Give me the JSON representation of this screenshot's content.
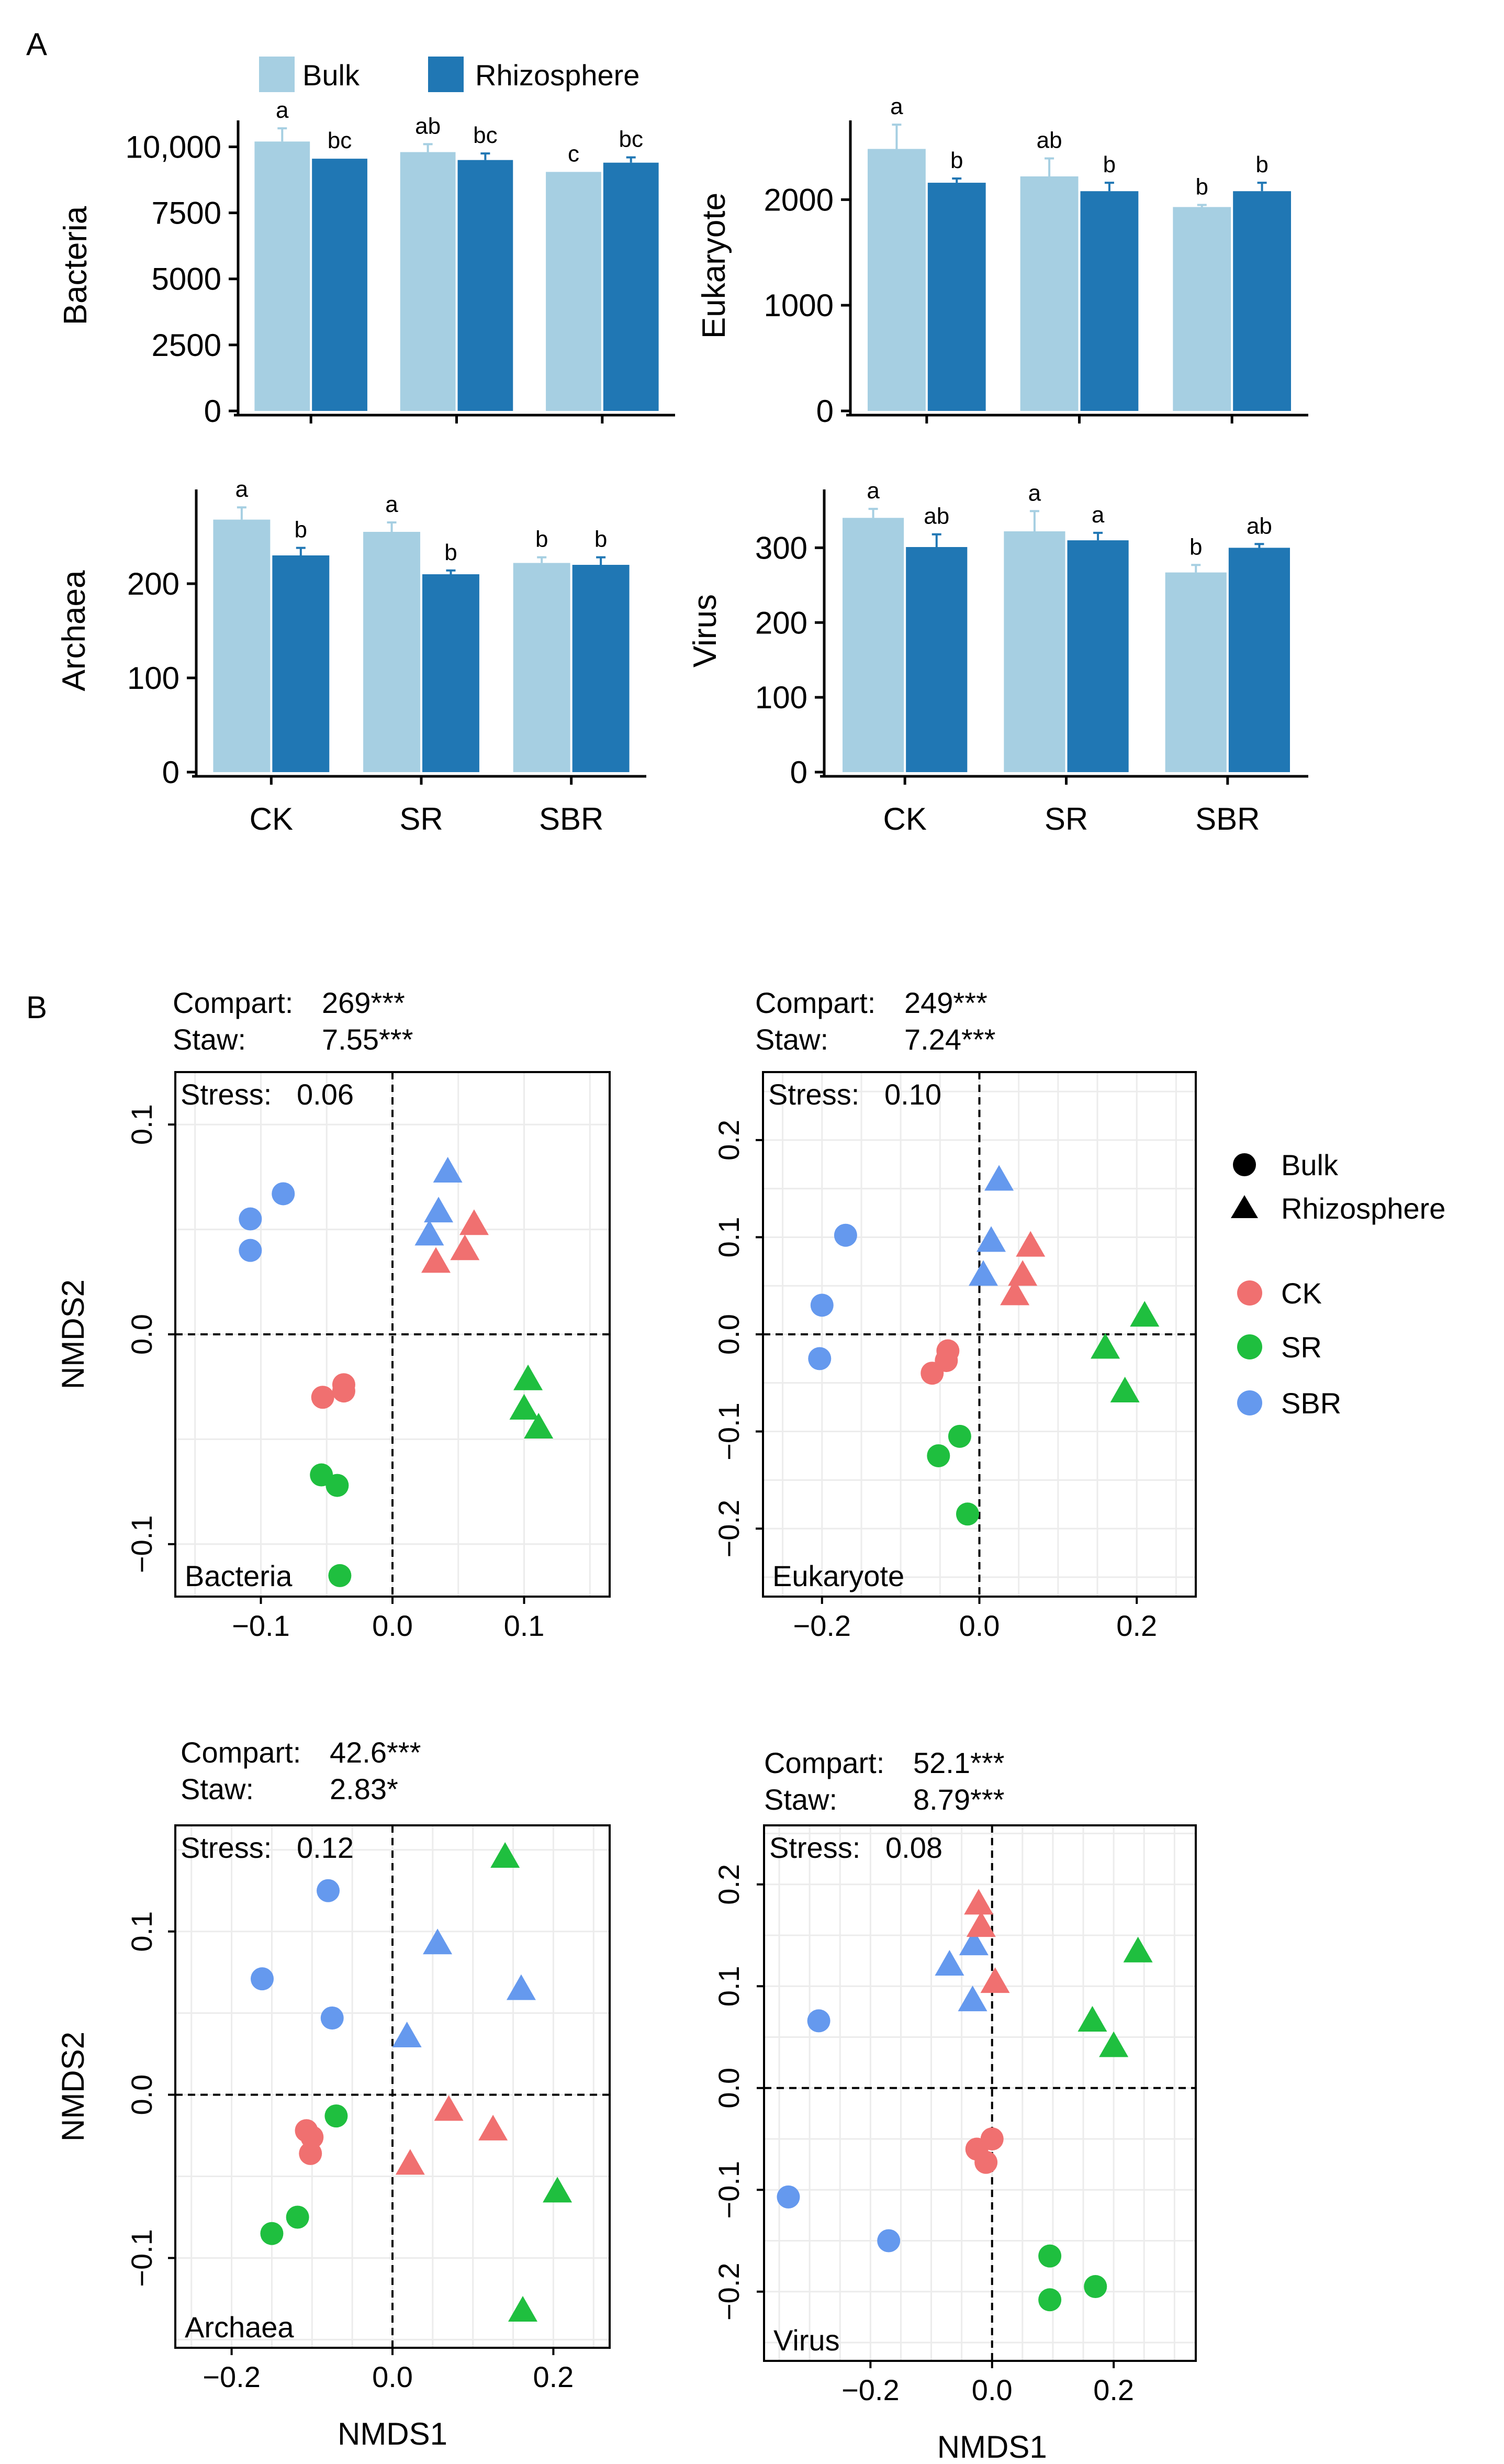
{
  "figure": {
    "label_a": "A",
    "label_b": "B"
  },
  "legend_a": {
    "bulk": "Bulk",
    "rhizosphere": "Rhizosphere"
  },
  "legend_b": {
    "bulk": "Bulk",
    "rhizosphere": "Rhizosphere",
    "ck": "CK",
    "sr": "SR",
    "sbr": "SBR"
  },
  "colors": {
    "bulk": "#a6cfe2",
    "rhizosphere": "#2077b4",
    "ck": "#f07070",
    "sr": "#1fbf3f",
    "sbr": "#6599ee"
  },
  "nmds_titles": {
    "compart": "Compart:",
    "staw": "Staw:",
    "stress_prefix": "Stress:"
  },
  "chart_data": [
    {
      "id": "bar_bacteria",
      "type": "bar",
      "ylabel": "Bacteria",
      "categories": [
        "CK",
        "SR",
        "SBR"
      ],
      "ylim": [
        0,
        11000
      ],
      "yticks": [
        0,
        2500,
        5000,
        7500,
        10000
      ],
      "ytick_labels": [
        "0",
        "2500",
        "5000",
        "7500",
        "10,000"
      ],
      "show_xticklabels": false,
      "series": [
        {
          "name": "Bulk",
          "values": [
            10200,
            9800,
            9050
          ],
          "errors": [
            500,
            300,
            0
          ],
          "letters": [
            "a",
            "ab",
            "c"
          ]
        },
        {
          "name": "Rhizosphere",
          "values": [
            9550,
            9500,
            9400
          ],
          "errors": [
            0,
            250,
            200
          ],
          "letters": [
            "bc",
            "bc",
            "bc"
          ]
        }
      ]
    },
    {
      "id": "bar_eukaryote",
      "type": "bar",
      "ylabel": "Eukaryote",
      "categories": [
        "CK",
        "SR",
        "SBR"
      ],
      "ylim": [
        0,
        2750
      ],
      "yticks": [
        0,
        1000,
        2000
      ],
      "ytick_labels": [
        "0",
        "1000",
        "2000"
      ],
      "show_xticklabels": false,
      "series": [
        {
          "name": "Bulk",
          "values": [
            2480,
            2220,
            1930
          ],
          "errors": [
            230,
            170,
            20
          ],
          "letters": [
            "a",
            "ab",
            "b"
          ]
        },
        {
          "name": "Rhizosphere",
          "values": [
            2160,
            2080,
            2080
          ],
          "errors": [
            40,
            80,
            80
          ],
          "letters": [
            "b",
            "b",
            "b"
          ]
        }
      ]
    },
    {
      "id": "bar_archaea",
      "type": "bar",
      "ylabel": "Archaea",
      "categories": [
        "CK",
        "SR",
        "SBR"
      ],
      "ylim": [
        0,
        300
      ],
      "yticks": [
        0,
        100,
        200
      ],
      "ytick_labels": [
        "0",
        "100",
        "200"
      ],
      "show_xticklabels": true,
      "series": [
        {
          "name": "Bulk",
          "values": [
            268,
            255,
            222
          ],
          "errors": [
            13,
            10,
            6
          ],
          "letters": [
            "a",
            "a",
            "b"
          ]
        },
        {
          "name": "Rhizosphere",
          "values": [
            230,
            210,
            220
          ],
          "errors": [
            8,
            4,
            8
          ],
          "letters": [
            "b",
            "b",
            "b"
          ]
        }
      ]
    },
    {
      "id": "bar_virus",
      "type": "bar",
      "ylabel": "Virus",
      "categories": [
        "CK",
        "SR",
        "SBR"
      ],
      "ylim": [
        0,
        378
      ],
      "yticks": [
        0,
        100,
        200,
        300
      ],
      "ytick_labels": [
        "0",
        "100",
        "200",
        "300"
      ],
      "show_xticklabels": true,
      "series": [
        {
          "name": "Bulk",
          "values": [
            340,
            322,
            267
          ],
          "errors": [
            12,
            27,
            10
          ],
          "letters": [
            "a",
            "a",
            "b"
          ]
        },
        {
          "name": "Rhizosphere",
          "values": [
            301,
            310,
            300
          ],
          "errors": [
            17,
            10,
            5
          ],
          "letters": [
            "ab",
            "a",
            "ab"
          ]
        }
      ]
    },
    {
      "id": "nmds_bacteria",
      "type": "scatter",
      "taxon": "Bacteria",
      "compart": "269***",
      "staw": "7.55***",
      "stress": "0.06",
      "xlim": [
        -0.165,
        0.165
      ],
      "ylim": [
        -0.125,
        0.125
      ],
      "xticks": [
        -0.1,
        0,
        0.1
      ],
      "xtick_labels": [
        "−0.1",
        "0.0",
        "0.1"
      ],
      "yticks": [
        -0.1,
        0,
        0.1
      ],
      "ytick_labels": [
        "−0.1",
        "0.0",
        "0.1"
      ],
      "ylabel": "NMDS2",
      "xlabel": "",
      "points": [
        {
          "x": -0.108,
          "y": 0.055,
          "shape": "circle",
          "group": "SBR"
        },
        {
          "x": -0.083,
          "y": 0.067,
          "shape": "circle",
          "group": "SBR"
        },
        {
          "x": -0.108,
          "y": 0.04,
          "shape": "circle",
          "group": "SBR"
        },
        {
          "x": 0.042,
          "y": 0.077,
          "shape": "triangle",
          "group": "SBR"
        },
        {
          "x": 0.035,
          "y": 0.058,
          "shape": "triangle",
          "group": "SBR"
        },
        {
          "x": 0.028,
          "y": 0.047,
          "shape": "triangle",
          "group": "SBR"
        },
        {
          "x": 0.062,
          "y": 0.052,
          "shape": "triangle",
          "group": "CK"
        },
        {
          "x": 0.055,
          "y": 0.04,
          "shape": "triangle",
          "group": "CK"
        },
        {
          "x": 0.033,
          "y": 0.034,
          "shape": "triangle",
          "group": "CK"
        },
        {
          "x": -0.037,
          "y": -0.024,
          "shape": "circle",
          "group": "CK"
        },
        {
          "x": -0.053,
          "y": -0.03,
          "shape": "circle",
          "group": "CK"
        },
        {
          "x": -0.037,
          "y": -0.027,
          "shape": "circle",
          "group": "CK"
        },
        {
          "x": 0.103,
          "y": -0.022,
          "shape": "triangle",
          "group": "SR"
        },
        {
          "x": 0.1,
          "y": -0.036,
          "shape": "triangle",
          "group": "SR"
        },
        {
          "x": 0.111,
          "y": -0.045,
          "shape": "triangle",
          "group": "SR"
        },
        {
          "x": -0.054,
          "y": -0.067,
          "shape": "circle",
          "group": "SR"
        },
        {
          "x": -0.042,
          "y": -0.072,
          "shape": "circle",
          "group": "SR"
        },
        {
          "x": -0.04,
          "y": -0.115,
          "shape": "circle",
          "group": "SR"
        }
      ]
    },
    {
      "id": "nmds_eukaryote",
      "type": "scatter",
      "taxon": "Eukaryote",
      "compart": "249***",
      "staw": "7.24***",
      "stress": "0.10",
      "xlim": [
        -0.275,
        0.275
      ],
      "ylim": [
        -0.27,
        0.27
      ],
      "xticks": [
        -0.2,
        0,
        0.2
      ],
      "xtick_labels": [
        "−0.2",
        "0.0",
        "0.2"
      ],
      "yticks": [
        -0.2,
        -0.1,
        0,
        0.1,
        0.2
      ],
      "ytick_labels": [
        "−0.2",
        "−0.1",
        "0.0",
        "0.1",
        "0.2"
      ],
      "ylabel": "",
      "xlabel": "",
      "points": [
        {
          "x": -0.17,
          "y": 0.102,
          "shape": "circle",
          "group": "SBR"
        },
        {
          "x": -0.2,
          "y": 0.03,
          "shape": "circle",
          "group": "SBR"
        },
        {
          "x": -0.203,
          "y": -0.025,
          "shape": "circle",
          "group": "SBR"
        },
        {
          "x": 0.025,
          "y": 0.158,
          "shape": "triangle",
          "group": "SBR"
        },
        {
          "x": 0.015,
          "y": 0.095,
          "shape": "triangle",
          "group": "SBR"
        },
        {
          "x": 0.005,
          "y": 0.06,
          "shape": "triangle",
          "group": "SBR"
        },
        {
          "x": 0.065,
          "y": 0.09,
          "shape": "triangle",
          "group": "CK"
        },
        {
          "x": 0.055,
          "y": 0.06,
          "shape": "triangle",
          "group": "CK"
        },
        {
          "x": 0.045,
          "y": 0.04,
          "shape": "triangle",
          "group": "CK"
        },
        {
          "x": -0.04,
          "y": -0.017,
          "shape": "circle",
          "group": "CK"
        },
        {
          "x": -0.042,
          "y": -0.027,
          "shape": "circle",
          "group": "CK"
        },
        {
          "x": -0.06,
          "y": -0.04,
          "shape": "circle",
          "group": "CK"
        },
        {
          "x": 0.21,
          "y": 0.018,
          "shape": "triangle",
          "group": "SR"
        },
        {
          "x": 0.16,
          "y": -0.015,
          "shape": "triangle",
          "group": "SR"
        },
        {
          "x": 0.185,
          "y": -0.06,
          "shape": "triangle",
          "group": "SR"
        },
        {
          "x": -0.025,
          "y": -0.105,
          "shape": "circle",
          "group": "SR"
        },
        {
          "x": -0.052,
          "y": -0.125,
          "shape": "circle",
          "group": "SR"
        },
        {
          "x": -0.015,
          "y": -0.185,
          "shape": "circle",
          "group": "SR"
        }
      ]
    },
    {
      "id": "nmds_archaea",
      "type": "scatter",
      "taxon": "Archaea",
      "compart": "42.6***",
      "staw": "2.83*",
      "stress": "0.12",
      "xlim": [
        -0.27,
        0.27
      ],
      "ylim": [
        -0.155,
        0.165
      ],
      "xticks": [
        -0.2,
        0,
        0.2
      ],
      "xtick_labels": [
        "−0.2",
        "0.0",
        "0.2"
      ],
      "yticks": [
        -0.1,
        0,
        0.1
      ],
      "ytick_labels": [
        "−0.1",
        "0.0",
        "0.1"
      ],
      "ylabel": "NMDS2",
      "xlabel": "NMDS1",
      "points": [
        {
          "x": -0.08,
          "y": 0.125,
          "shape": "circle",
          "group": "SBR"
        },
        {
          "x": -0.162,
          "y": 0.071,
          "shape": "circle",
          "group": "SBR"
        },
        {
          "x": -0.075,
          "y": 0.047,
          "shape": "circle",
          "group": "SBR"
        },
        {
          "x": 0.056,
          "y": 0.092,
          "shape": "triangle",
          "group": "SBR"
        },
        {
          "x": 0.16,
          "y": 0.064,
          "shape": "triangle",
          "group": "SBR"
        },
        {
          "x": 0.018,
          "y": 0.035,
          "shape": "triangle",
          "group": "SBR"
        },
        {
          "x": 0.14,
          "y": 0.145,
          "shape": "triangle",
          "group": "SR"
        },
        {
          "x": 0.205,
          "y": -0.06,
          "shape": "triangle",
          "group": "SR"
        },
        {
          "x": 0.162,
          "y": -0.133,
          "shape": "triangle",
          "group": "SR"
        },
        {
          "x": 0.07,
          "y": -0.01,
          "shape": "triangle",
          "group": "CK"
        },
        {
          "x": 0.125,
          "y": -0.022,
          "shape": "triangle",
          "group": "CK"
        },
        {
          "x": 0.022,
          "y": -0.043,
          "shape": "triangle",
          "group": "CK"
        },
        {
          "x": -0.107,
          "y": -0.022,
          "shape": "circle",
          "group": "CK"
        },
        {
          "x": -0.1,
          "y": -0.026,
          "shape": "circle",
          "group": "CK"
        },
        {
          "x": -0.102,
          "y": -0.036,
          "shape": "circle",
          "group": "CK"
        },
        {
          "x": -0.07,
          "y": -0.013,
          "shape": "circle",
          "group": "SR"
        },
        {
          "x": -0.118,
          "y": -0.075,
          "shape": "circle",
          "group": "SR"
        },
        {
          "x": -0.15,
          "y": -0.085,
          "shape": "circle",
          "group": "SR"
        }
      ]
    },
    {
      "id": "nmds_virus",
      "type": "scatter",
      "taxon": "Virus",
      "compart": "52.1***",
      "staw": "8.79***",
      "stress": "0.08",
      "xlim": [
        -0.375,
        0.335
      ],
      "ylim": [
        -0.268,
        0.258
      ],
      "xticks": [
        -0.2,
        0,
        0.2
      ],
      "xtick_labels": [
        "−0.2",
        "0.0",
        "0.2"
      ],
      "yticks": [
        -0.2,
        -0.1,
        0,
        0.1,
        0.2
      ],
      "ytick_labels": [
        "−0.2",
        "−0.1",
        "0.0",
        "0.1",
        "0.2"
      ],
      "ylabel": "",
      "xlabel": "NMDS1",
      "points": [
        {
          "x": -0.285,
          "y": 0.066,
          "shape": "circle",
          "group": "SBR"
        },
        {
          "x": -0.335,
          "y": -0.107,
          "shape": "circle",
          "group": "SBR"
        },
        {
          "x": -0.17,
          "y": -0.15,
          "shape": "circle",
          "group": "SBR"
        },
        {
          "x": -0.07,
          "y": 0.12,
          "shape": "triangle",
          "group": "SBR"
        },
        {
          "x": -0.03,
          "y": 0.14,
          "shape": "triangle",
          "group": "SBR"
        },
        {
          "x": -0.032,
          "y": 0.085,
          "shape": "triangle",
          "group": "SBR"
        },
        {
          "x": -0.022,
          "y": 0.18,
          "shape": "triangle",
          "group": "CK"
        },
        {
          "x": -0.018,
          "y": 0.158,
          "shape": "triangle",
          "group": "CK"
        },
        {
          "x": 0.005,
          "y": 0.103,
          "shape": "triangle",
          "group": "CK"
        },
        {
          "x": -0.025,
          "y": -0.06,
          "shape": "circle",
          "group": "CK"
        },
        {
          "x": 0.0,
          "y": -0.05,
          "shape": "circle",
          "group": "CK"
        },
        {
          "x": -0.01,
          "y": -0.073,
          "shape": "circle",
          "group": "CK"
        },
        {
          "x": 0.24,
          "y": 0.133,
          "shape": "triangle",
          "group": "SR"
        },
        {
          "x": 0.165,
          "y": 0.065,
          "shape": "triangle",
          "group": "SR"
        },
        {
          "x": 0.2,
          "y": 0.04,
          "shape": "triangle",
          "group": "SR"
        },
        {
          "x": 0.095,
          "y": -0.165,
          "shape": "circle",
          "group": "SR"
        },
        {
          "x": 0.095,
          "y": -0.208,
          "shape": "circle",
          "group": "SR"
        },
        {
          "x": 0.17,
          "y": -0.195,
          "shape": "circle",
          "group": "SR"
        }
      ]
    }
  ]
}
